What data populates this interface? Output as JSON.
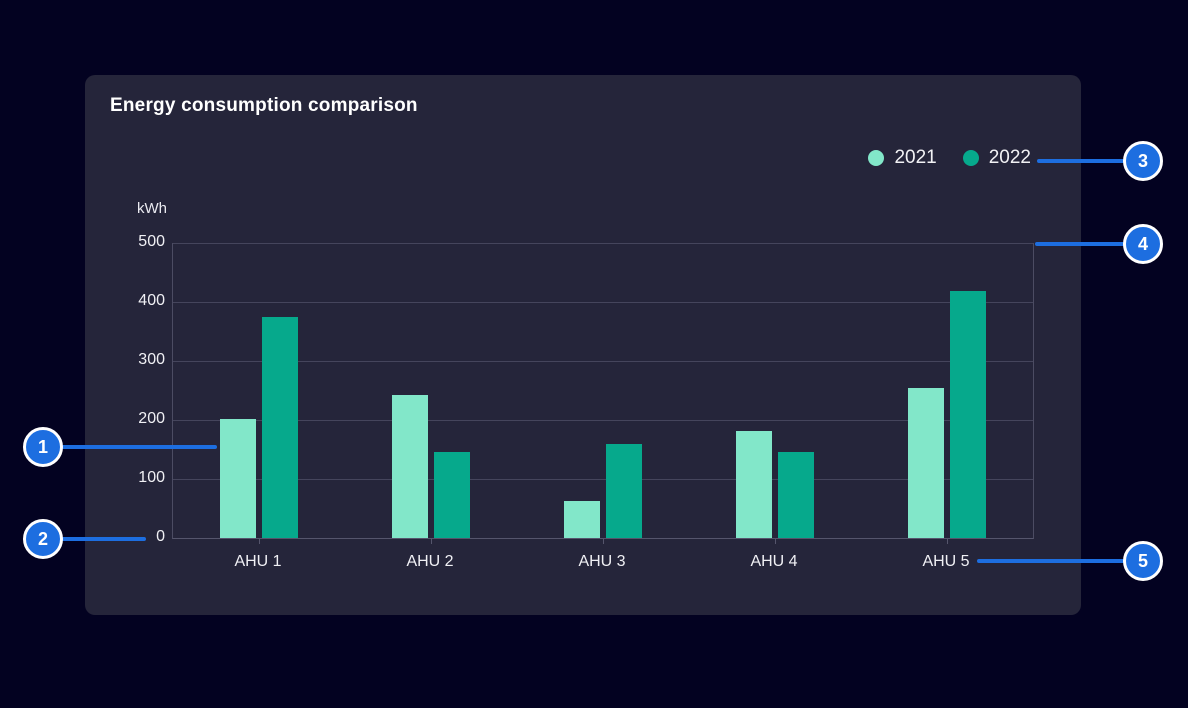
{
  "card": {
    "title": "Energy consumption comparison"
  },
  "chart_data": {
    "type": "bar",
    "title": "Energy consumption comparison",
    "unit_label": "kWh",
    "categories": [
      "AHU 1",
      "AHU 2",
      "AHU 3",
      "AHU 4",
      "AHU 5"
    ],
    "series": [
      {
        "name": "2021",
        "color": "#82e7c9",
        "values": [
          202,
          242,
          62,
          181,
          255
        ]
      },
      {
        "name": "2022",
        "color": "#06a98c",
        "values": [
          375,
          145,
          160,
          145,
          418
        ]
      }
    ],
    "ylim": [
      0,
      500
    ],
    "yticks": [
      0,
      100,
      200,
      300,
      400,
      500
    ],
    "grid": true,
    "legend_position": "top-right"
  },
  "callouts": [
    {
      "number": "1"
    },
    {
      "number": "2"
    },
    {
      "number": "3"
    },
    {
      "number": "4"
    },
    {
      "number": "5"
    }
  ],
  "colors": {
    "page_background": "#030221",
    "card_background": "#25253a",
    "gridline": "#45455c",
    "text": "#f0f0f4",
    "accent_blue": "#1d6ee0",
    "series_2021": "#82e7c9",
    "series_2022": "#06a98c"
  }
}
